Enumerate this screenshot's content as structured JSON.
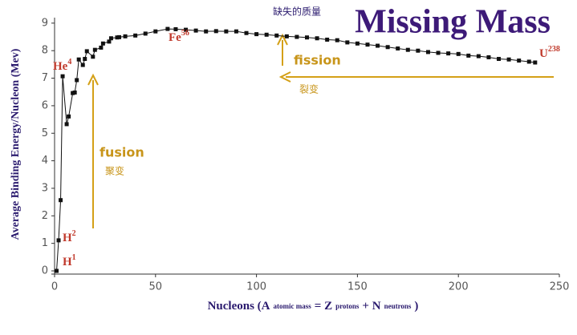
{
  "chart_data": {
    "type": "scatter",
    "title": "Missing Mass",
    "subtitle": "缺失的质量",
    "ylabel": "Average Binding Energy/Nucleon (Mev)",
    "xlabel_parts": [
      {
        "text": "Nucleons (A"
      },
      {
        "sub": "atomic mass"
      },
      {
        "text": "= Z"
      },
      {
        "sub": "protons"
      },
      {
        "text": "+ N"
      },
      {
        "sub": "neutrons"
      },
      {
        "text": ")"
      }
    ],
    "x": [
      1,
      2,
      3,
      4,
      6,
      7,
      9,
      10,
      11,
      12,
      14,
      15,
      16,
      19,
      20,
      23,
      24,
      27,
      28,
      31,
      32,
      35,
      40,
      45,
      50,
      56,
      60,
      65,
      70,
      75,
      80,
      85,
      90,
      95,
      100,
      105,
      110,
      115,
      120,
      125,
      130,
      135,
      140,
      145,
      150,
      155,
      160,
      165,
      170,
      175,
      180,
      185,
      190,
      195,
      200,
      205,
      210,
      215,
      220,
      225,
      230,
      235,
      238
    ],
    "values": [
      0,
      1.11,
      2.57,
      7.07,
      5.33,
      5.61,
      6.46,
      6.48,
      6.93,
      7.68,
      7.48,
      7.7,
      7.98,
      7.78,
      8.03,
      8.11,
      8.26,
      8.33,
      8.45,
      8.48,
      8.49,
      8.52,
      8.55,
      8.62,
      8.7,
      8.79,
      8.78,
      8.76,
      8.73,
      8.7,
      8.71,
      8.7,
      8.7,
      8.64,
      8.6,
      8.58,
      8.55,
      8.52,
      8.5,
      8.48,
      8.45,
      8.4,
      8.38,
      8.3,
      8.26,
      8.22,
      8.18,
      8.13,
      8.08,
      8.03,
      8.0,
      7.95,
      7.92,
      7.9,
      7.88,
      7.82,
      7.8,
      7.76,
      7.7,
      7.68,
      7.64,
      7.6,
      7.57
    ],
    "color": "#111111",
    "xlim": [
      0,
      250
    ],
    "xticks": [
      0,
      50,
      100,
      150,
      200,
      250
    ],
    "ylim": [
      0,
      9.2
    ],
    "yticks": [
      0,
      1,
      2,
      3,
      4,
      5,
      6,
      7,
      8,
      9
    ],
    "grid": false,
    "annotations": [
      {
        "text": "He",
        "sup": "4"
      },
      {
        "text": "H",
        "sup": "2"
      },
      {
        "text": "H",
        "sup": "1"
      },
      {
        "text": "Fe",
        "sup": "56"
      },
      {
        "text": "U",
        "sup": "238"
      }
    ],
    "fission": {
      "label": "fission",
      "label_cn": "裂变"
    },
    "fusion": {
      "label": "fusion",
      "label_cn": "聚变"
    }
  }
}
